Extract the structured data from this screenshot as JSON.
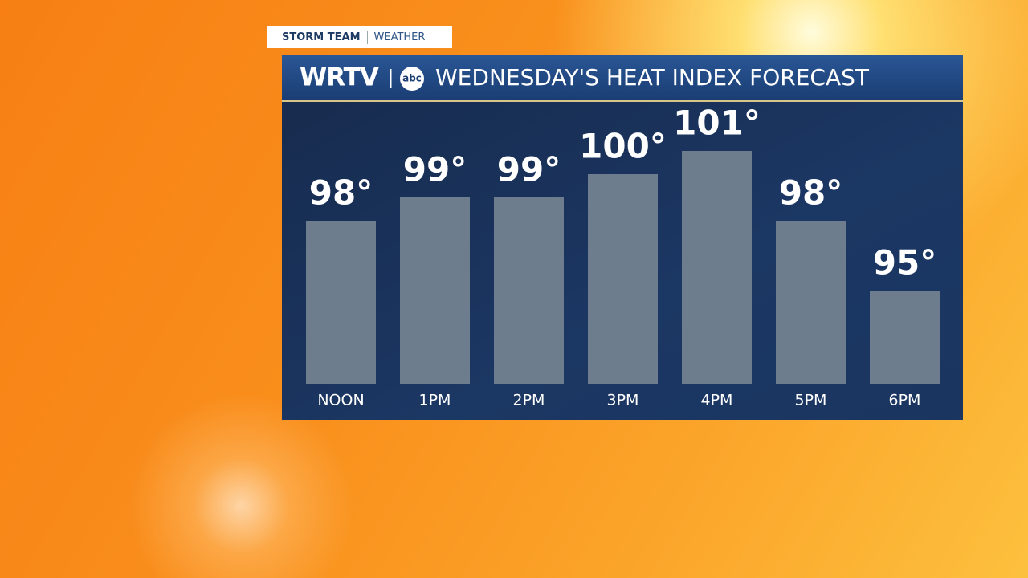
{
  "brand": {
    "team": "STORM TEAM",
    "section": "WEATHER",
    "station": "WRTV",
    "network": "abc"
  },
  "chart_data": {
    "type": "bar",
    "title": "WEDNESDAY'S HEAT INDEX FORECAST",
    "categories": [
      "NOON",
      "1PM",
      "2PM",
      "3PM",
      "4PM",
      "5PM",
      "6PM"
    ],
    "values": [
      98,
      99,
      99,
      100,
      101,
      98,
      95
    ],
    "value_labels": [
      "98°",
      "99°",
      "99°",
      "100°",
      "101°",
      "98°",
      "95°"
    ],
    "color": "#6e7d8e",
    "ylim": [
      91,
      102
    ]
  }
}
